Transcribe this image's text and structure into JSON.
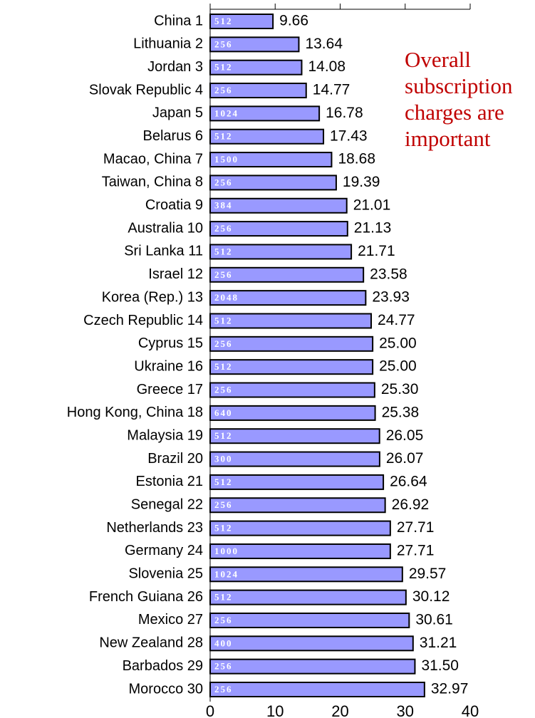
{
  "chart_data": {
    "type": "barh",
    "categories": [
      "China 1",
      "Lithuania 2",
      "Jordan 3",
      "Slovak Republic 4",
      "Japan 5",
      "Belarus 6",
      "Macao, China 7",
      "Taiwan, China 8",
      "Croatia 9",
      "Australia 10",
      "Sri Lanka 11",
      "Israel 12",
      "Korea (Rep.) 13",
      "Czech Republic 14",
      "Cyprus 15",
      "Ukraine 16",
      "Greece 17",
      "Hong Kong, China 18",
      "Malaysia 19",
      "Brazil 20",
      "Estonia 21",
      "Senegal 22",
      "Netherlands 23",
      "Germany 24",
      "Slovenia 25",
      "French Guiana 26",
      "Mexico 27",
      "New Zealand 28",
      "Barbados 29",
      "Morocco 30"
    ],
    "values": [
      9.66,
      13.64,
      14.08,
      14.77,
      16.78,
      17.43,
      18.68,
      19.39,
      21.01,
      21.13,
      21.71,
      23.58,
      23.93,
      24.77,
      25,
      25,
      25.3,
      25.38,
      26.05,
      26.07,
      26.64,
      26.92,
      27.71,
      27.71,
      29.57,
      30.12,
      30.61,
      31.21,
      31.5,
      32.97
    ],
    "value_labels": [
      "9.66",
      "13.64",
      "14.08",
      "14.77",
      "16.78",
      "17.43",
      "18.68",
      "19.39",
      "21.01",
      "21.13",
      "21.71",
      "23.58",
      "23.93",
      "24.77",
      "25.00",
      "25.00",
      "25.30",
      "25.38",
      "26.05",
      "26.07",
      "26.64",
      "26.92",
      "27.71",
      "27.71",
      "29.57",
      "30.12",
      "30.61",
      "31.21",
      "31.50",
      "32.97"
    ],
    "bar_labels": [
      512,
      256,
      512,
      256,
      1024,
      512,
      1500,
      256,
      384,
      256,
      512,
      256,
      2048,
      512,
      256,
      512,
      256,
      640,
      512,
      300,
      512,
      256,
      512,
      1000,
      1024,
      512,
      256,
      400,
      256,
      256
    ],
    "color": "#9999ff",
    "xlim": [
      0,
      40
    ],
    "xticks": [
      0,
      10,
      20,
      30,
      40
    ],
    "grid": false,
    "annotation": [
      "Overall",
      "subscription",
      "charges are",
      "important"
    ],
    "annotation_color": "#c00000"
  }
}
